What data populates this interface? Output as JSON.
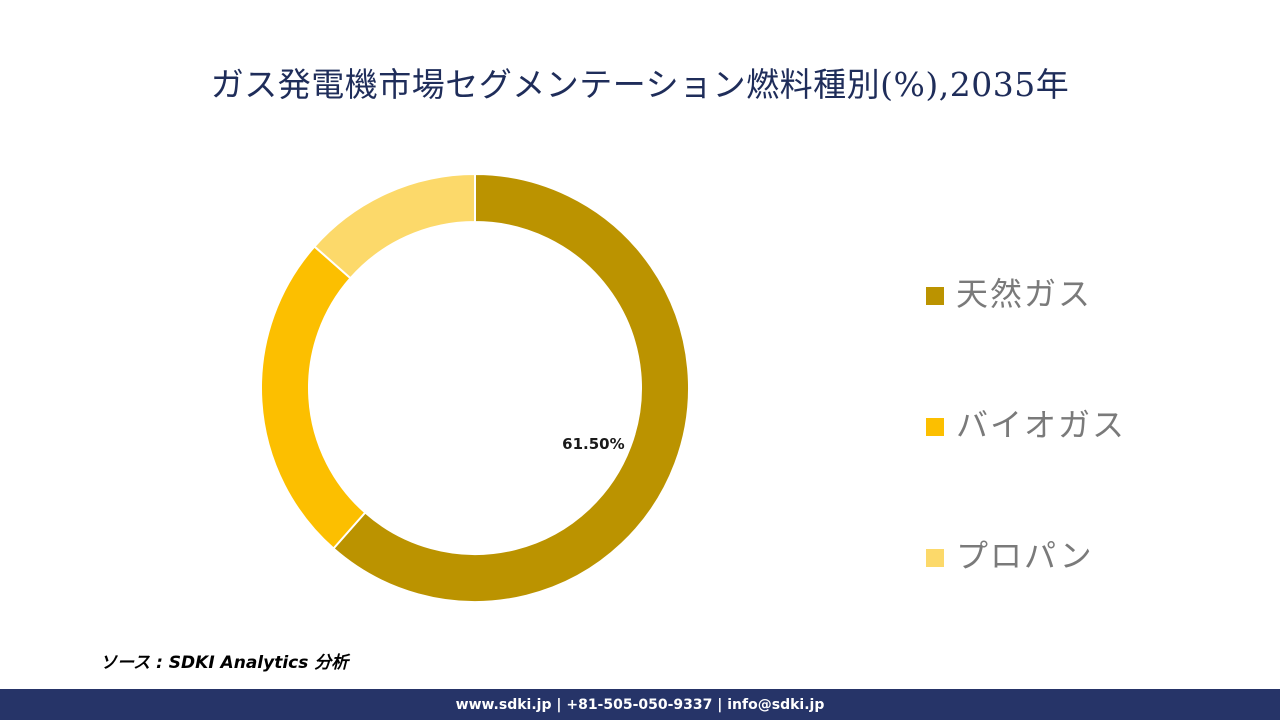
{
  "header": {
    "title": "ガス発電機市場セグメンテーション燃料種別(%),2035年"
  },
  "chart_data": {
    "type": "pie",
    "variant": "donut",
    "title": "ガス発電機市場セグメンテーション燃料種別(%),2035年",
    "categories": [
      "天然ガス",
      "バイオガス",
      "プロパン"
    ],
    "values": [
      61.5,
      25.0,
      13.5
    ],
    "colors": [
      "#bb9300",
      "#fcbf00",
      "#fcd96a"
    ],
    "data_labels": [
      "61.50%",
      "",
      ""
    ],
    "legend_position": "right",
    "start_angle_deg": 0,
    "direction": "clockwise"
  },
  "source": {
    "text": "ソース : SDKI Analytics 分析"
  },
  "footer": {
    "contact": "www.sdki.jp | +81-505-050-9337 | info@sdki.jp"
  }
}
